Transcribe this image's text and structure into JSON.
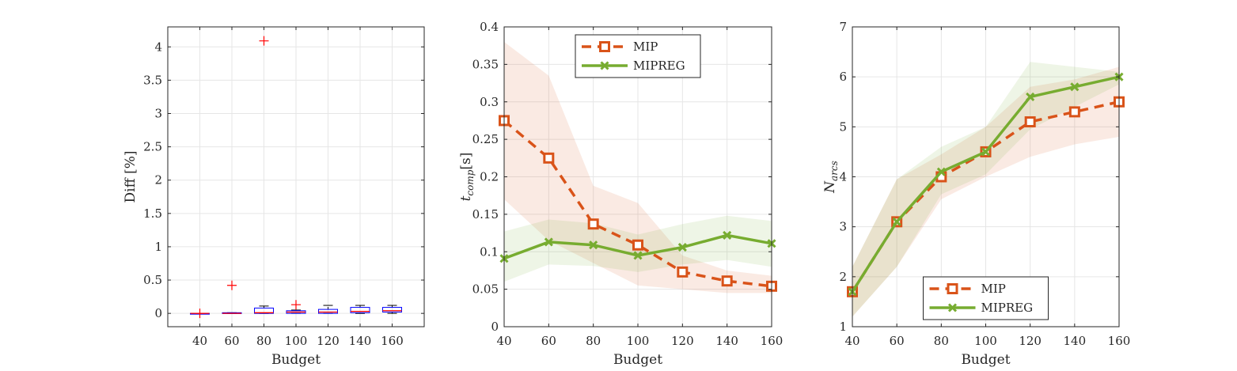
{
  "chart_data": [
    {
      "type": "box",
      "xlabel": "Budget",
      "ylabel": "Diff [%]",
      "categories": [
        40,
        60,
        80,
        100,
        120,
        140,
        160
      ],
      "yticks": [
        0,
        0.5,
        1,
        1.5,
        2,
        2.5,
        3,
        3.5,
        4
      ],
      "ylim": [
        -0.2,
        4.3
      ],
      "grid": true,
      "boxes": [
        {
          "x": 40,
          "q1": 0.0,
          "median": 0.0,
          "q3": 0.0,
          "whisker_low": 0.0,
          "whisker_high": 0.0,
          "outliers": [
            0.0
          ]
        },
        {
          "x": 60,
          "q1": 0.0,
          "median": 0.0,
          "q3": 0.01,
          "whisker_low": 0.0,
          "whisker_high": 0.01,
          "outliers": [
            0.42
          ]
        },
        {
          "x": 80,
          "q1": 0.0,
          "median": 0.01,
          "q3": 0.08,
          "whisker_low": 0.0,
          "whisker_high": 0.11,
          "outliers": [
            4.09
          ]
        },
        {
          "x": 100,
          "q1": 0.0,
          "median": 0.02,
          "q3": 0.04,
          "whisker_low": 0.0,
          "whisker_high": 0.05,
          "outliers": [
            0.13
          ]
        },
        {
          "x": 120,
          "q1": 0.0,
          "median": 0.02,
          "q3": 0.06,
          "whisker_low": 0.0,
          "whisker_high": 0.12,
          "outliers": []
        },
        {
          "x": 140,
          "q1": 0.01,
          "median": 0.03,
          "q3": 0.09,
          "whisker_low": 0.0,
          "whisker_high": 0.12,
          "outliers": []
        },
        {
          "x": 160,
          "q1": 0.02,
          "median": 0.04,
          "q3": 0.09,
          "whisker_low": 0.0,
          "whisker_high": 0.12,
          "outliers": []
        }
      ]
    },
    {
      "type": "line",
      "xlabel": "Budget",
      "ylabel_base": "t",
      "ylabel_sub": "comp",
      "ylabel_rest": "[s]",
      "x": [
        40,
        60,
        80,
        100,
        120,
        140,
        160
      ],
      "xlim": [
        40,
        160
      ],
      "ylim": [
        0,
        0.4
      ],
      "yticks": [
        0,
        0.05,
        0.1,
        0.15,
        0.2,
        0.25,
        0.3,
        0.35,
        0.4
      ],
      "grid": true,
      "legend_position": "top-center",
      "series": [
        {
          "name": "MIP",
          "color": "#d95319",
          "style": "dashed",
          "marker": "square",
          "values": [
            0.275,
            0.225,
            0.137,
            0.109,
            0.073,
            0.061,
            0.054
          ],
          "band_low": [
            0.17,
            0.115,
            0.085,
            0.055,
            0.05,
            0.045,
            0.045
          ],
          "band_high": [
            0.38,
            0.335,
            0.188,
            0.165,
            0.095,
            0.075,
            0.068
          ]
        },
        {
          "name": "MIPREG",
          "color": "#77ac30",
          "style": "solid",
          "marker": "x",
          "values": [
            0.091,
            0.113,
            0.109,
            0.095,
            0.106,
            0.122,
            0.111
          ],
          "band_low": [
            0.06,
            0.083,
            0.081,
            0.073,
            0.083,
            0.089,
            0.08
          ],
          "band_high": [
            0.127,
            0.143,
            0.138,
            0.123,
            0.137,
            0.148,
            0.141
          ]
        }
      ]
    },
    {
      "type": "line",
      "xlabel": "Budget",
      "ylabel_base": "N",
      "ylabel_sub": "arcs",
      "ylabel_rest": "",
      "x": [
        40,
        60,
        80,
        100,
        120,
        140,
        160
      ],
      "xlim": [
        40,
        160
      ],
      "ylim": [
        1,
        7
      ],
      "yticks": [
        1,
        2,
        3,
        4,
        5,
        6,
        7
      ],
      "grid": true,
      "legend_position": "bottom-center",
      "series": [
        {
          "name": "MIP",
          "color": "#d95319",
          "style": "dashed",
          "marker": "square",
          "values": [
            1.7,
            3.1,
            4.0,
            4.5,
            5.1,
            5.3,
            5.5
          ],
          "band_low": [
            1.2,
            2.2,
            3.55,
            4.0,
            4.4,
            4.65,
            4.8
          ],
          "band_high": [
            2.2,
            3.95,
            4.45,
            5.0,
            5.8,
            5.95,
            6.2
          ]
        },
        {
          "name": "MIPREG",
          "color": "#77ac30",
          "style": "solid",
          "marker": "x",
          "values": [
            1.7,
            3.1,
            4.1,
            4.5,
            5.6,
            5.8,
            6.0
          ],
          "band_low": [
            1.2,
            2.2,
            3.65,
            4.05,
            4.95,
            5.4,
            5.85
          ],
          "band_high": [
            2.2,
            3.95,
            4.6,
            5.0,
            6.3,
            6.2,
            6.1
          ]
        }
      ]
    }
  ]
}
